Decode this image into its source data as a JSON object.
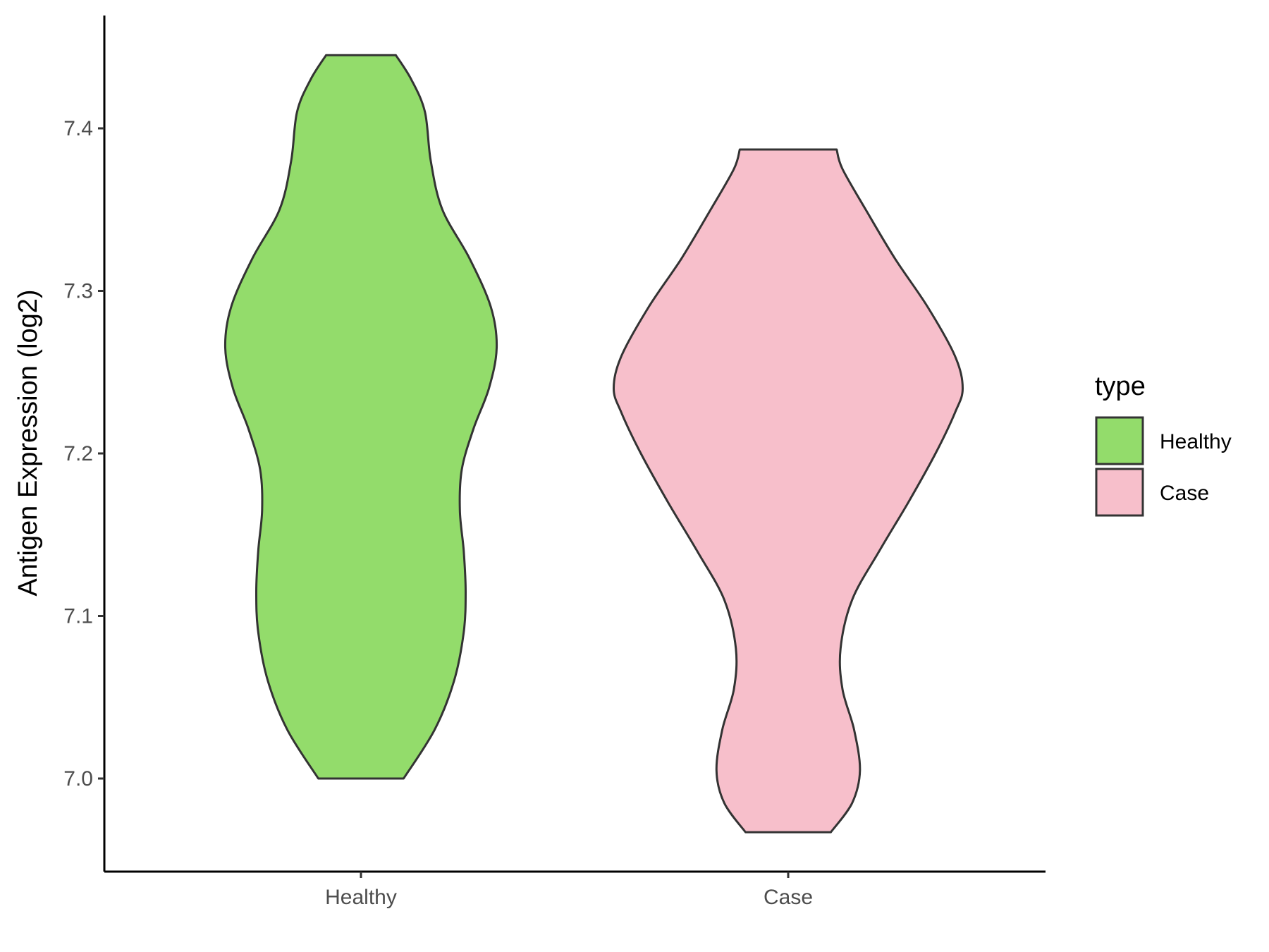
{
  "chart_data": {
    "type": "violin",
    "title": "",
    "xlabel": "",
    "ylabel": "Antigen Expression (log2)",
    "ylim": [
      6.945,
      7.475
    ],
    "yticks": [
      "7.0",
      "7.1",
      "7.2",
      "7.3",
      "7.4"
    ],
    "categories": [
      "Healthy",
      "Case"
    ],
    "legend": {
      "title": "type",
      "position": "right",
      "entries": [
        {
          "label": "Healthy",
          "color": "#93dc6b"
        },
        {
          "label": "Case",
          "color": "#f7bfcb"
        }
      ]
    },
    "grid": false,
    "series": [
      {
        "name": "Healthy",
        "color": "#93dc6b",
        "min": 7.0,
        "max": 7.445,
        "profile": [
          [
            7.0,
            0.22
          ],
          [
            7.03,
            0.38
          ],
          [
            7.06,
            0.48
          ],
          [
            7.09,
            0.53
          ],
          [
            7.115,
            0.54
          ],
          [
            7.14,
            0.53
          ],
          [
            7.165,
            0.51
          ],
          [
            7.19,
            0.52
          ],
          [
            7.215,
            0.58
          ],
          [
            7.24,
            0.66
          ],
          [
            7.265,
            0.7
          ],
          [
            7.29,
            0.67
          ],
          [
            7.32,
            0.56
          ],
          [
            7.35,
            0.42
          ],
          [
            7.38,
            0.36
          ],
          [
            7.41,
            0.33
          ],
          [
            7.43,
            0.26
          ],
          [
            7.445,
            0.18
          ]
        ]
      },
      {
        "name": "Case",
        "color": "#f7bfcb",
        "min": 6.967,
        "max": 7.387,
        "profile": [
          [
            6.967,
            0.22
          ],
          [
            6.985,
            0.33
          ],
          [
            7.005,
            0.37
          ],
          [
            7.03,
            0.34
          ],
          [
            7.055,
            0.28
          ],
          [
            7.08,
            0.27
          ],
          [
            7.11,
            0.33
          ],
          [
            7.14,
            0.47
          ],
          [
            7.17,
            0.62
          ],
          [
            7.2,
            0.76
          ],
          [
            7.225,
            0.86
          ],
          [
            7.24,
            0.9
          ],
          [
            7.26,
            0.86
          ],
          [
            7.29,
            0.72
          ],
          [
            7.32,
            0.55
          ],
          [
            7.35,
            0.4
          ],
          [
            7.375,
            0.28
          ],
          [
            7.387,
            0.25
          ]
        ]
      }
    ]
  }
}
